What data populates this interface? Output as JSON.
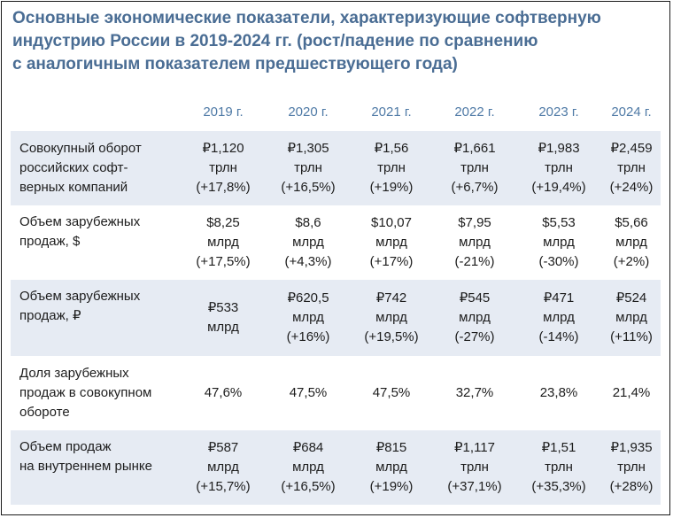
{
  "title": {
    "lines": [
      "Основные экономические показатели, характеризующие софтверную",
      "индустрию России в 2019-2024 гг. (рост/падение по сравнению",
      "с аналогичным показателем предшествующего года)"
    ]
  },
  "years": [
    "2019 г.",
    "2020 г.",
    "2021 г.",
    "2022 г.",
    "2023 г.",
    "2024 г."
  ],
  "rows": [
    {
      "label": [
        "Совокупный оборот",
        "российских софт-",
        "верных компаний"
      ],
      "cells": [
        [
          "₽1,120",
          "трлн",
          "(+17,8%)"
        ],
        [
          "₽1,305",
          "трлн",
          "(+16,5%)"
        ],
        [
          "₽1,56",
          "трлн",
          "(+19%)"
        ],
        [
          "₽1,661",
          "трлн",
          "(+6,7%)"
        ],
        [
          "₽1,983",
          "трлн",
          "(+19,4%)"
        ],
        [
          "₽2,459",
          "трлн",
          "(+24%)"
        ]
      ]
    },
    {
      "label": [
        "Объем зарубежных",
        "продаж, $"
      ],
      "cells": [
        [
          "$8,25",
          "млрд",
          "(+17,5%)"
        ],
        [
          "$8,6",
          "млрд",
          "(+4,3%)"
        ],
        [
          "$10,07",
          "млрд",
          "(+17%)"
        ],
        [
          "$7,95",
          "млрд",
          "(-21%)"
        ],
        [
          "$5,53",
          "млрд",
          "(-30%)"
        ],
        [
          "$5,66",
          "млрд",
          "(+2%)"
        ]
      ]
    },
    {
      "label": [
        "Объем зарубежных",
        "продаж, ₽"
      ],
      "cells": [
        [
          "₽533",
          "млрд"
        ],
        [
          "₽620,5",
          "млрд",
          "(+16%)"
        ],
        [
          "₽742",
          "млрд",
          "(+19,5%)"
        ],
        [
          "₽545",
          "млрд",
          "(-27%)"
        ],
        [
          "₽471",
          "млрд",
          "(-14%)"
        ],
        [
          "₽524",
          "млрд",
          "(+11%)"
        ]
      ]
    },
    {
      "label": [
        "Доля зарубежных",
        "продаж в совокупном",
        "обороте"
      ],
      "cells": [
        [
          "47,6%"
        ],
        [
          "47,5%"
        ],
        [
          "47,5%"
        ],
        [
          "32,7%"
        ],
        [
          "23,8%"
        ],
        [
          "21,4%"
        ]
      ]
    },
    {
      "label": [
        "Объем продаж",
        "на внутреннем рынке"
      ],
      "cells": [
        [
          "₽587",
          "млрд",
          "(+15,7%)"
        ],
        [
          "₽684",
          "млрд",
          "(+16,5%)"
        ],
        [
          "₽815",
          "млрд",
          "(+19%)"
        ],
        [
          "₽1,117",
          "трлн",
          "(+37,1%)"
        ],
        [
          "₽1,51",
          "трлн",
          "(+35,3%)"
        ],
        [
          "₽1,935",
          "трлн",
          "(+28%)"
        ]
      ]
    }
  ]
}
